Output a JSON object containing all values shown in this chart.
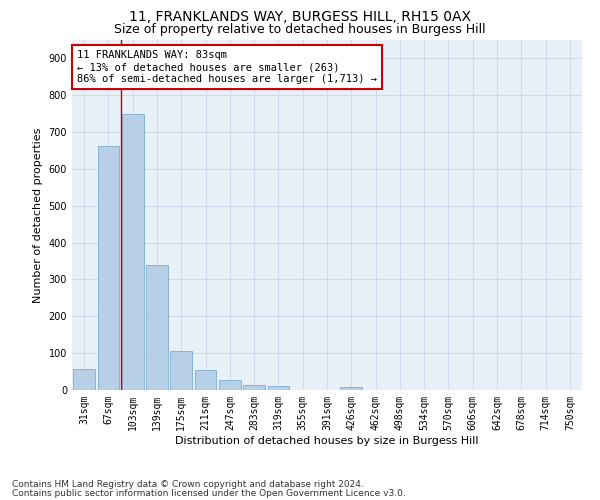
{
  "title_line1": "11, FRANKLANDS WAY, BURGESS HILL, RH15 0AX",
  "title_line2": "Size of property relative to detached houses in Burgess Hill",
  "xlabel": "Distribution of detached houses by size in Burgess Hill",
  "ylabel": "Number of detached properties",
  "categories": [
    "31sqm",
    "67sqm",
    "103sqm",
    "139sqm",
    "175sqm",
    "211sqm",
    "247sqm",
    "283sqm",
    "319sqm",
    "355sqm",
    "391sqm",
    "426sqm",
    "462sqm",
    "498sqm",
    "534sqm",
    "570sqm",
    "606sqm",
    "642sqm",
    "678sqm",
    "714sqm",
    "750sqm"
  ],
  "values": [
    57,
    663,
    750,
    338,
    107,
    55,
    26,
    14,
    10,
    0,
    0,
    8,
    0,
    0,
    0,
    0,
    0,
    0,
    0,
    0,
    0
  ],
  "bar_color": "#b8cfe8",
  "bar_edge_color": "#7aadd4",
  "vline_color": "#cc0000",
  "vline_x_index": 1.5,
  "annotation_text": "11 FRANKLANDS WAY: 83sqm\n← 13% of detached houses are smaller (263)\n86% of semi-detached houses are larger (1,713) →",
  "annotation_box_facecolor": "#ffffff",
  "annotation_box_edgecolor": "#cc0000",
  "ylim": [
    0,
    950
  ],
  "yticks": [
    0,
    100,
    200,
    300,
    400,
    500,
    600,
    700,
    800,
    900
  ],
  "footnote1": "Contains HM Land Registry data © Crown copyright and database right 2024.",
  "footnote2": "Contains public sector information licensed under the Open Government Licence v3.0.",
  "bg_color": "#ffffff",
  "plot_bg_color": "#e8f0f8",
  "grid_color": "#c8d8e8",
  "title1_fontsize": 10,
  "title2_fontsize": 9,
  "axis_label_fontsize": 8,
  "tick_fontsize": 7,
  "annotation_fontsize": 7.5,
  "footnote_fontsize": 6.5
}
